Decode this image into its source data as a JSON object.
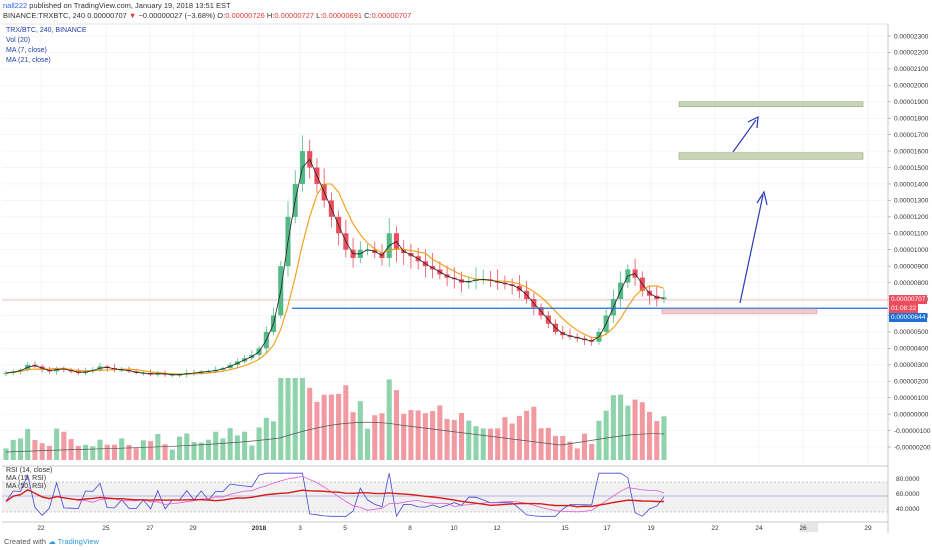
{
  "header": {
    "author": "nall222",
    "published": "published on TradingView.com, January 19, 2018 13:51 EST",
    "symbol_line_prefix": "BINANCE:TRXBTC, 240",
    "last": "0.00000707",
    "change": "−0.00000027 (−3.68%)",
    "open_label": "O:",
    "open": "0.00000726",
    "high_label": "H:",
    "high": "0.00000727",
    "low_label": "L:",
    "low": "0.00000691",
    "close_label": "C:",
    "close": "0.00000707"
  },
  "legend": {
    "title": "TRX/BTC, 240, BINANCE",
    "items": [
      "Vol (20)",
      "MA (7, close)",
      "MA (21, close)"
    ]
  },
  "rsi_legend": {
    "items": [
      "RSI (14, close)",
      "MA (15, RSI)",
      "MA (50, RSI)"
    ]
  },
  "footer": {
    "created_with": "Created with",
    "brand": "TradingView"
  },
  "price_tags": {
    "last": "0.00000707",
    "countdown": "01:08:22",
    "level": "0.00000644"
  },
  "colors": {
    "up": "#53b987",
    "down": "#eb4d5c",
    "ma7": "#222222",
    "ma21": "#f39c12",
    "support": "#1e6fd6",
    "arrow": "#2a3ab8",
    "rsi": "#4547d4",
    "rsima": "#e05bd0",
    "rsima50": "#d81b1b",
    "target_box": "#c8d4b4",
    "entry_box": "#f2c9cf"
  },
  "chart_data": {
    "type": "candlestick",
    "x_tick_labels": [
      "22",
      "25",
      "27",
      "29",
      "2018",
      "3",
      "5",
      "8",
      "10",
      "12",
      "15",
      "17",
      "19",
      "22",
      "24",
      "26",
      "29"
    ],
    "price_axis": {
      "ticks": [
        "0.00002300",
        "0.00002200",
        "0.00002100",
        "0.00002000",
        "0.00001900",
        "0.00001800",
        "0.00001700",
        "0.00001600",
        "0.00001500",
        "0.00001400",
        "0.00001300",
        "0.00001200",
        "0.00001100",
        "0.00001000",
        "0.00000900",
        "0.00000800",
        "0.00000700",
        "0.00000600",
        "0.00000500",
        "0.00000400",
        "0.00000300",
        "0.00000200",
        "0.00000100",
        "0.00000000",
        "-0.00000100",
        "-0.00000200"
      ],
      "tick_values": [
        2.3e-05,
        2.2e-05,
        2.1e-05,
        2e-05,
        1.9e-05,
        1.8e-05,
        1.7e-05,
        1.6e-05,
        1.5e-05,
        1.4e-05,
        1.3e-05,
        1.2e-05,
        1.1e-05,
        1e-05,
        9e-06,
        8e-06,
        7e-06,
        6e-06,
        5e-06,
        4e-06,
        3e-06,
        2e-06,
        1e-06,
        0,
        -1e-06,
        -2e-06
      ]
    },
    "rsi_axis": {
      "ticks": [
        "80.0000",
        "60.0000",
        "40.0000"
      ],
      "tick_values": [
        80,
        60,
        40
      ],
      "range": [
        25,
        95
      ]
    },
    "support_level": 6.44e-06,
    "entry_zone": [
      6.1e-06,
      6.4e-06
    ],
    "target_zones": [
      [
        1.55e-05,
        1.59e-05
      ],
      [
        1.87e-05,
        1.9e-05
      ]
    ],
    "ohlc_close_series": [
      2.5e-06,
      2.6e-06,
      2.7e-06,
      3e-06,
      2.9e-06,
      2.7e-06,
      2.6e-06,
      2.8e-06,
      2.7e-06,
      2.6e-06,
      2.5e-06,
      2.6e-06,
      2.7e-06,
      2.9e-06,
      2.8e-06,
      2.7e-06,
      2.7e-06,
      2.6e-06,
      2.5e-06,
      2.5e-06,
      2.4e-06,
      2.5e-06,
      2.4e-06,
      2.4e-06,
      2.4e-06,
      2.5e-06,
      2.5e-06,
      2.6e-06,
      2.6e-06,
      2.7e-06,
      2.8e-06,
      3e-06,
      3.2e-06,
      3.4e-06,
      3.6e-06,
      4e-06,
      5e-06,
      6e-06,
      9e-06,
      1.2e-05,
      1.4e-05,
      1.6e-05,
      1.5e-05,
      1.4e-05,
      1.3e-05,
      1.2e-05,
      1.1e-05,
      1e-05,
      9.5e-06,
      1e-05,
      1e-05,
      9.8e-06,
      9.5e-06,
      1.1e-05,
      1e-05,
      9.8e-06,
      9.6e-06,
      9.3e-06,
      9e-06,
      8.8e-06,
      8.5e-06,
      8.3e-06,
      8.2e-06,
      8e-06,
      8.1e-06,
      8.2e-06,
      8.2e-06,
      8.1e-06,
      8e-06,
      7.9e-06,
      7.8e-06,
      7.5e-06,
      7e-06,
      6.5e-06,
      6e-06,
      5.5e-06,
      5e-06,
      4.8e-06,
      4.7e-06,
      4.6e-06,
      4.5e-06,
      4.4e-06,
      5e-06,
      6e-06,
      7e-06,
      8e-06,
      8.8e-06,
      8.3e-06,
      7.5e-06,
      7.2e-06,
      7e-06,
      7.1e-06
    ]
  }
}
